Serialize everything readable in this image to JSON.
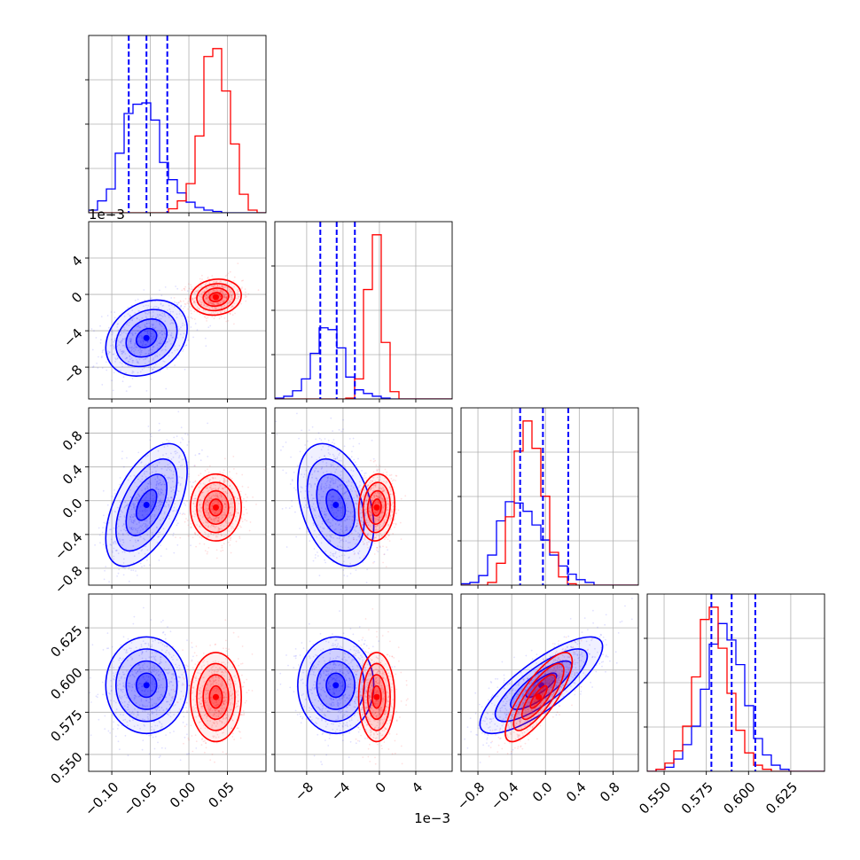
{
  "chart_data": {
    "type": "corner",
    "colors": {
      "series_a": "#0000ff",
      "series_b": "#ff0000",
      "grid": "#b0b0b0",
      "axes": "#000000"
    },
    "grid": true,
    "quantile_lines": {
      "style": "dashed",
      "color": "#0000ff"
    },
    "params": [
      {
        "range": [
          -0.13,
          0.1
        ],
        "ticks": [
          -0.1,
          -0.05,
          0.0,
          0.05
        ],
        "tick_labels": [
          "−0.10",
          "−0.05",
          "0.00",
          "0.05"
        ],
        "offset": ""
      },
      {
        "range": [
          -0.0115,
          0.008
        ],
        "ticks": [
          -0.008,
          -0.004,
          0.0,
          0.004
        ],
        "tick_labels": [
          "−8",
          "−4",
          "0",
          "4"
        ],
        "offset": "1e−3"
      },
      {
        "range": [
          -0.001,
          0.0011
        ],
        "ticks": [
          -0.0008,
          -0.0004,
          0.0,
          0.0004,
          0.0008
        ],
        "tick_labels": [
          "−0.8",
          "−0.4",
          "0.0",
          "0.4",
          "0.8"
        ],
        "offset": "1e−3"
      },
      {
        "range": [
          0.54,
          0.645
        ],
        "ticks": [
          0.55,
          0.575,
          0.6,
          0.625
        ],
        "tick_labels": [
          "0.550",
          "0.575",
          "0.600",
          "0.625"
        ],
        "offset": ""
      }
    ],
    "series": [
      {
        "name": "",
        "color": "#0000ff",
        "mean": [
          -0.055,
          -0.0048,
          -5e-05,
          0.591
        ],
        "sd": [
          0.024,
          0.0019,
          0.00033,
          0.013
        ],
        "corr": {
          "0-1": 0.25,
          "0-2": 0.55,
          "0-3": 0.0,
          "1-2": -0.35,
          "1-3": 0.0,
          "2-3": 0.8
        },
        "quantiles": [
          [
            -0.078,
            -0.055,
            -0.028
          ],
          [
            -0.0065,
            -0.0047,
            -0.0027
          ],
          [
            -0.0003,
            -3e-05,
            0.00027
          ],
          [
            0.578,
            0.59,
            0.604
          ]
        ],
        "histograms": [
          {
            "edges_range": [
              -0.13,
              0.1
            ],
            "bins": 20,
            "counts": [
              2,
              9,
              18,
              45,
              75,
              82,
              83,
              70,
              38,
              25,
              15,
              8,
              4,
              2,
              1,
              0,
              0,
              0,
              0,
              0
            ]
          },
          {
            "edges_range": [
              -0.0115,
              0.008
            ],
            "bins": 20,
            "counts": [
              1,
              3,
              9,
              22,
              50,
              78,
              76,
              56,
              24,
              10,
              6,
              3,
              1,
              0,
              0,
              0,
              0,
              0,
              0,
              0
            ]
          },
          {
            "edges_range": [
              -0.001,
              0.0011
            ],
            "bins": 20,
            "counts": [
              1,
              2,
              7,
              22,
              47,
              61,
              60,
              54,
              44,
              33,
              22,
              14,
              8,
              4,
              2,
              0,
              0,
              0,
              0,
              0
            ]
          },
          {
            "edges_range": [
              0.54,
              0.645
            ],
            "bins": 20,
            "counts": [
              0,
              1,
              2,
              6,
              13,
              22,
              40,
              62,
              72,
              64,
              52,
              32,
              16,
              8,
              3,
              1,
              0,
              0,
              0,
              0
            ]
          }
        ]
      },
      {
        "name": "",
        "color": "#ff0000",
        "mean": [
          0.035,
          -0.0003,
          -8e-05,
          0.584
        ],
        "sd": [
          0.015,
          0.0009,
          0.00018,
          0.012
        ],
        "corr": {
          "0-1": 0.1,
          "0-2": 0.0,
          "0-3": 0.0,
          "1-2": 0.1,
          "1-3": 0.0,
          "2-3": 0.8
        },
        "histograms": [
          {
            "edges_range": [
              -0.13,
              0.1
            ],
            "bins": 20,
            "counts": [
              0,
              0,
              0,
              0,
              0,
              0,
              0,
              0,
              0,
              3,
              9,
              22,
              58,
              118,
              124,
              92,
              52,
              14,
              2,
              0
            ]
          },
          {
            "edges_range": [
              -0.0115,
              0.008
            ],
            "bins": 20,
            "counts": [
              0,
              0,
              0,
              0,
              0,
              0,
              0,
              0,
              1,
              22,
              120,
              180,
              62,
              8,
              0,
              0,
              0,
              0,
              0,
              0
            ]
          },
          {
            "edges_range": [
              -0.001,
              0.0011
            ],
            "bins": 20,
            "counts": [
              0,
              0,
              0,
              2,
              16,
              50,
              98,
              120,
              100,
              65,
              24,
              6,
              1,
              0,
              0,
              0,
              0,
              0,
              0,
              0
            ]
          },
          {
            "edges_range": [
              0.54,
              0.645
            ],
            "bins": 20,
            "counts": [
              0,
              1,
              4,
              10,
              22,
              46,
              74,
              80,
              60,
              38,
              20,
              9,
              3,
              1,
              0,
              0,
              0,
              0,
              0,
              0
            ]
          }
        ]
      }
    ]
  }
}
